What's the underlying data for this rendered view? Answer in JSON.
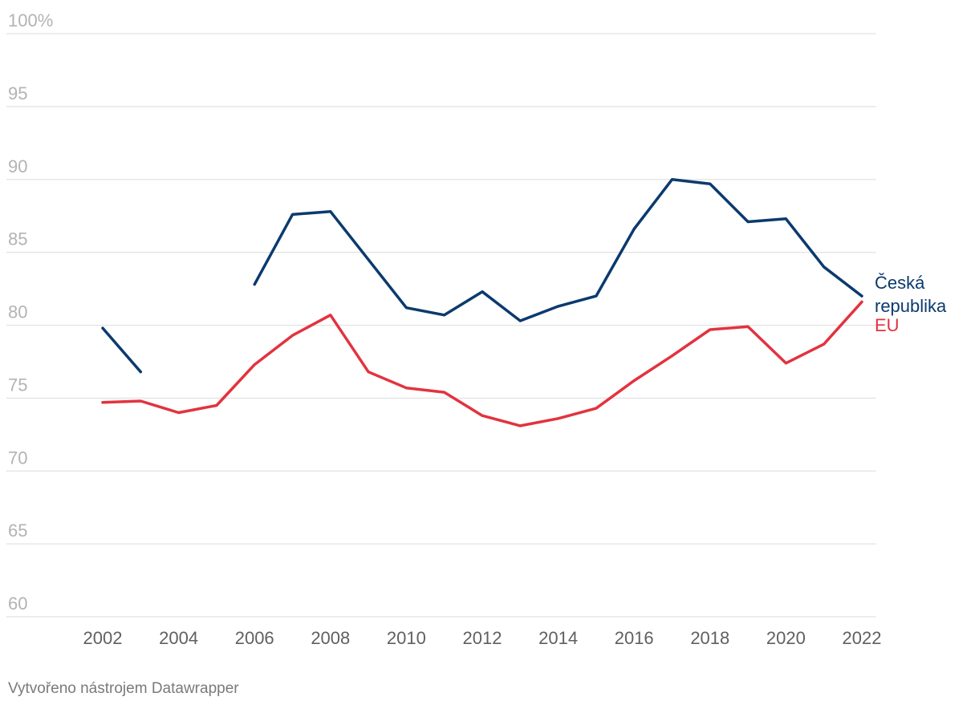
{
  "footer": "Vytvořeno nástrojem Datawrapper",
  "chart_data": {
    "type": "line",
    "title": "",
    "xlabel": "",
    "ylabel": "",
    "ylim": [
      60,
      100
    ],
    "y_ticks": [
      60,
      65,
      70,
      75,
      80,
      85,
      90,
      95,
      100
    ],
    "y_tick_labels": [
      "60",
      "65",
      "70",
      "75",
      "80",
      "85",
      "90",
      "95",
      "100%"
    ],
    "x": [
      2002,
      2003,
      2004,
      2005,
      2006,
      2007,
      2008,
      2009,
      2010,
      2011,
      2012,
      2013,
      2014,
      2015,
      2016,
      2017,
      2018,
      2019,
      2020,
      2021,
      2022
    ],
    "x_ticks": [
      "2002",
      "2004",
      "2006",
      "2008",
      "2010",
      "2012",
      "2014",
      "2016",
      "2018",
      "2020",
      "2022"
    ],
    "grid": true,
    "legend": "direct labels at line ends",
    "series": [
      {
        "name": "Česká republika",
        "label_lines": [
          "Česká",
          "republika"
        ],
        "color": "#0b3a6e",
        "values": [
          79.8,
          76.8,
          null,
          null,
          82.8,
          87.6,
          87.8,
          84.5,
          81.2,
          80.7,
          82.3,
          80.3,
          81.3,
          82.0,
          86.6,
          90.0,
          89.7,
          87.1,
          87.3,
          84.0,
          82.0
        ]
      },
      {
        "name": "EU",
        "label_lines": [
          "EU"
        ],
        "color": "#e2333f",
        "values": [
          74.7,
          74.8,
          74.0,
          74.5,
          77.3,
          79.3,
          80.7,
          76.8,
          75.7,
          75.4,
          73.8,
          73.1,
          73.6,
          74.3,
          76.2,
          77.9,
          79.7,
          79.9,
          77.4,
          78.7,
          81.6
        ]
      }
    ]
  }
}
